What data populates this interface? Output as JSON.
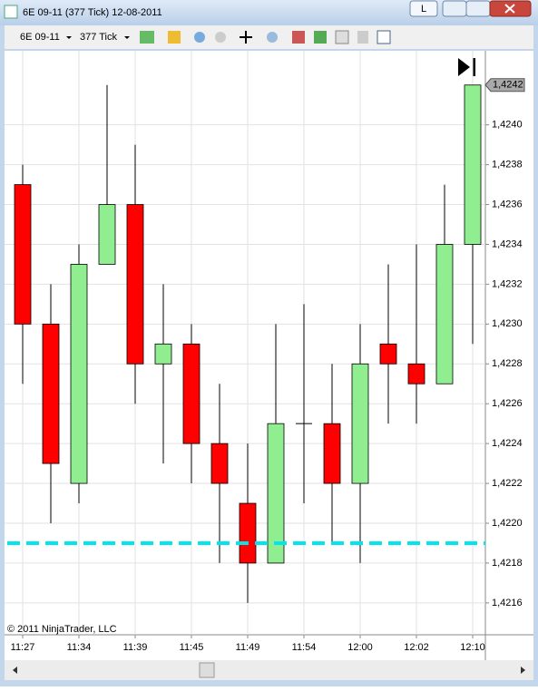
{
  "window": {
    "title": "6E 09-11 (377 Tick)  12-08-2011",
    "button": "L",
    "instrument": "6E 09-11",
    "interval": "377 Tick",
    "copyright": "© 2011 NinjaTrader, LLC"
  },
  "chart_data": {
    "type": "candlestick",
    "categories": [
      "11:27",
      null,
      "11:34",
      null,
      "11:39",
      null,
      "11:45",
      null,
      "11:49",
      null,
      "11:54",
      null,
      "12:00",
      null,
      "12:02",
      null,
      "12:10"
    ],
    "open": [
      1.4237,
      1.423,
      1.4222,
      1.4233,
      1.4236,
      1.4228,
      1.4229,
      1.4224,
      1.4221,
      1.4218,
      1.4225,
      1.4225,
      1.4222,
      1.4229,
      1.4228,
      1.4227,
      1.4234
    ],
    "high": [
      1.4238,
      1.4232,
      1.4234,
      1.4242,
      1.4239,
      1.4232,
      1.423,
      1.4227,
      1.4224,
      1.423,
      1.4231,
      1.4228,
      1.423,
      1.4233,
      1.4234,
      1.4237,
      1.4242
    ],
    "low": [
      1.4227,
      1.422,
      1.4221,
      1.4233,
      1.4226,
      1.4223,
      1.4222,
      1.4218,
      1.4216,
      1.4218,
      1.4221,
      1.4219,
      1.4218,
      1.4225,
      1.4225,
      1.4227,
      1.4229
    ],
    "close": [
      1.423,
      1.4223,
      1.4233,
      1.4236,
      1.4228,
      1.4229,
      1.4224,
      1.4222,
      1.4218,
      1.4225,
      1.4225,
      1.4222,
      1.4228,
      1.4228,
      1.4227,
      1.4234,
      1.4242
    ],
    "up_color": "#90ee90",
    "down_color": "#ff0000",
    "ylim": [
      1.42144,
      1.42434
    ],
    "yticks": [
      {
        "value": 1.4216,
        "label": "1,4216"
      },
      {
        "value": 1.4218,
        "label": "1,4218"
      },
      {
        "value": 1.422,
        "label": "1,4220"
      },
      {
        "value": 1.4222,
        "label": "1,4222"
      },
      {
        "value": 1.4224,
        "label": "1,4224"
      },
      {
        "value": 1.4226,
        "label": "1,4226"
      },
      {
        "value": 1.4228,
        "label": "1,4228"
      },
      {
        "value": 1.423,
        "label": "1,4230"
      },
      {
        "value": 1.4232,
        "label": "1,4232"
      },
      {
        "value": 1.4234,
        "label": "1,4234"
      },
      {
        "value": 1.4236,
        "label": "1,4236"
      },
      {
        "value": 1.4238,
        "label": "1,4238"
      },
      {
        "value": 1.424,
        "label": "1,4240"
      }
    ],
    "last_price": {
      "value": 1.4242,
      "label": "1,4242"
    },
    "hline": {
      "value": 1.4219,
      "color": "#00e5ee"
    },
    "grid": true
  }
}
